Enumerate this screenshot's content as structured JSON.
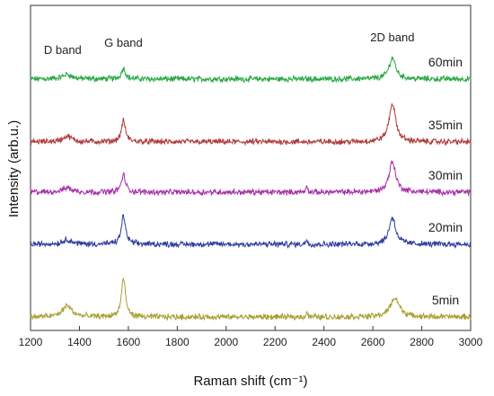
{
  "chart_data": {
    "type": "line",
    "xlabel": "Raman shift (cm⁻¹)",
    "ylabel": "Intensity (arb.u.)",
    "xlim": [
      1200,
      3000
    ],
    "xticks": [
      "1200",
      "1400",
      "1600",
      "1800",
      "2000",
      "2200",
      "2400",
      "2600",
      "2800",
      "3000"
    ],
    "grid": false,
    "annotations": [
      {
        "text": "D band",
        "x": 1350
      },
      {
        "text": "G band",
        "x": 1580
      },
      {
        "text": "2D band",
        "x": 2680
      }
    ],
    "series": [
      {
        "name": "60min",
        "color": "#27a844",
        "peaks": [
          [
            1350,
            0.12
          ],
          [
            1580,
            0.28
          ],
          [
            2680,
            0.55
          ]
        ]
      },
      {
        "name": "35min",
        "color": "#b03a3a",
        "peaks": [
          [
            1350,
            0.15
          ],
          [
            1580,
            0.55
          ],
          [
            2680,
            1.0
          ]
        ]
      },
      {
        "name": "30min",
        "color": "#a630a6",
        "peaks": [
          [
            1350,
            0.12
          ],
          [
            1580,
            0.45
          ],
          [
            2330,
            0.22
          ],
          [
            2680,
            0.8
          ]
        ]
      },
      {
        "name": "20min",
        "color": "#2e3d9c",
        "peaks": [
          [
            1350,
            0.12
          ],
          [
            1580,
            0.75
          ],
          [
            2330,
            0.15
          ],
          [
            2680,
            0.7
          ]
        ]
      },
      {
        "name": "5min",
        "color": "#a8a032",
        "peaks": [
          [
            1350,
            0.3
          ],
          [
            1580,
            1.0
          ],
          [
            2330,
            0.15
          ],
          [
            2690,
            0.5
          ]
        ]
      }
    ]
  }
}
